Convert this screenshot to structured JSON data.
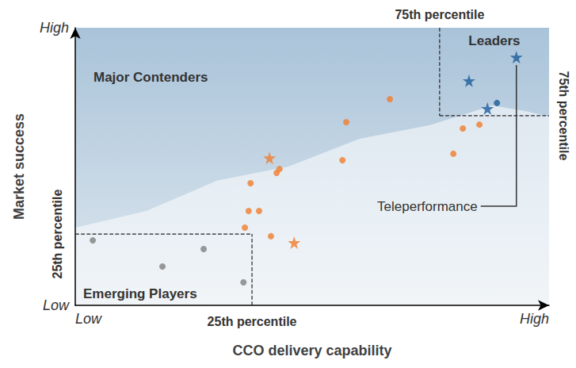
{
  "chart_data": {
    "type": "scatter",
    "xlabel": "CCO delivery capability",
    "ylabel": "Market success",
    "xlim": [
      0,
      100
    ],
    "ylim": [
      0,
      100
    ],
    "xticks": [
      {
        "value": 0,
        "label": "Low"
      },
      {
        "value": 100,
        "label": "High"
      }
    ],
    "yticks": [
      {
        "value": 0,
        "label": "Low"
      },
      {
        "value": 100,
        "label": "High"
      }
    ],
    "grid": false,
    "series": [
      {
        "color": "#7f7f7f",
        "marker": "circle",
        "x": [
          3.7,
          18.4,
          27.1,
          35.5
        ],
        "y": [
          23.4,
          14.0,
          20.3,
          8.3
        ]
      },
      {
        "color": "#f07d2d",
        "marker": "circle",
        "x": [
          37.0,
          42.5,
          43.1,
          36.6,
          38.8,
          35.8,
          41.3,
          57.2,
          66.4,
          56.4,
          79.8,
          81.8,
          85.3
        ],
        "y": [
          44.0,
          47.7,
          49.1,
          34.0,
          34.0,
          28.0,
          24.9,
          66.0,
          74.3,
          52.3,
          54.6,
          63.7,
          65.1
        ]
      },
      {
        "color": "#f07d2d",
        "marker": "star",
        "x": [
          41.0,
          46.2
        ],
        "y": [
          53.1,
          22.6
        ]
      },
      {
        "color": "#1d5b9a",
        "marker": "star",
        "x": [
          93.1,
          83.1,
          87.0
        ],
        "y": [
          89.4,
          80.9,
          70.9
        ]
      },
      {
        "color": "#1d5b9a",
        "marker": "circle",
        "x": [
          89.0
        ],
        "y": [
          72.9
        ]
      }
    ],
    "thresholds": {
      "x": [
        {
          "value": 37.3,
          "label": "25th percentile"
        },
        {
          "value": 76.9,
          "label": "75th percentile"
        }
      ],
      "y": [
        {
          "value": 25.7,
          "label": "25th percentile"
        },
        {
          "value": 68.3,
          "label": "75th percentile"
        }
      ]
    },
    "regions": [
      "Leaders",
      "Major Contenders",
      "Emerging Players"
    ],
    "annotations": [
      {
        "text": "Teleperformance",
        "x": 93.1,
        "y": 89.4
      }
    ]
  }
}
